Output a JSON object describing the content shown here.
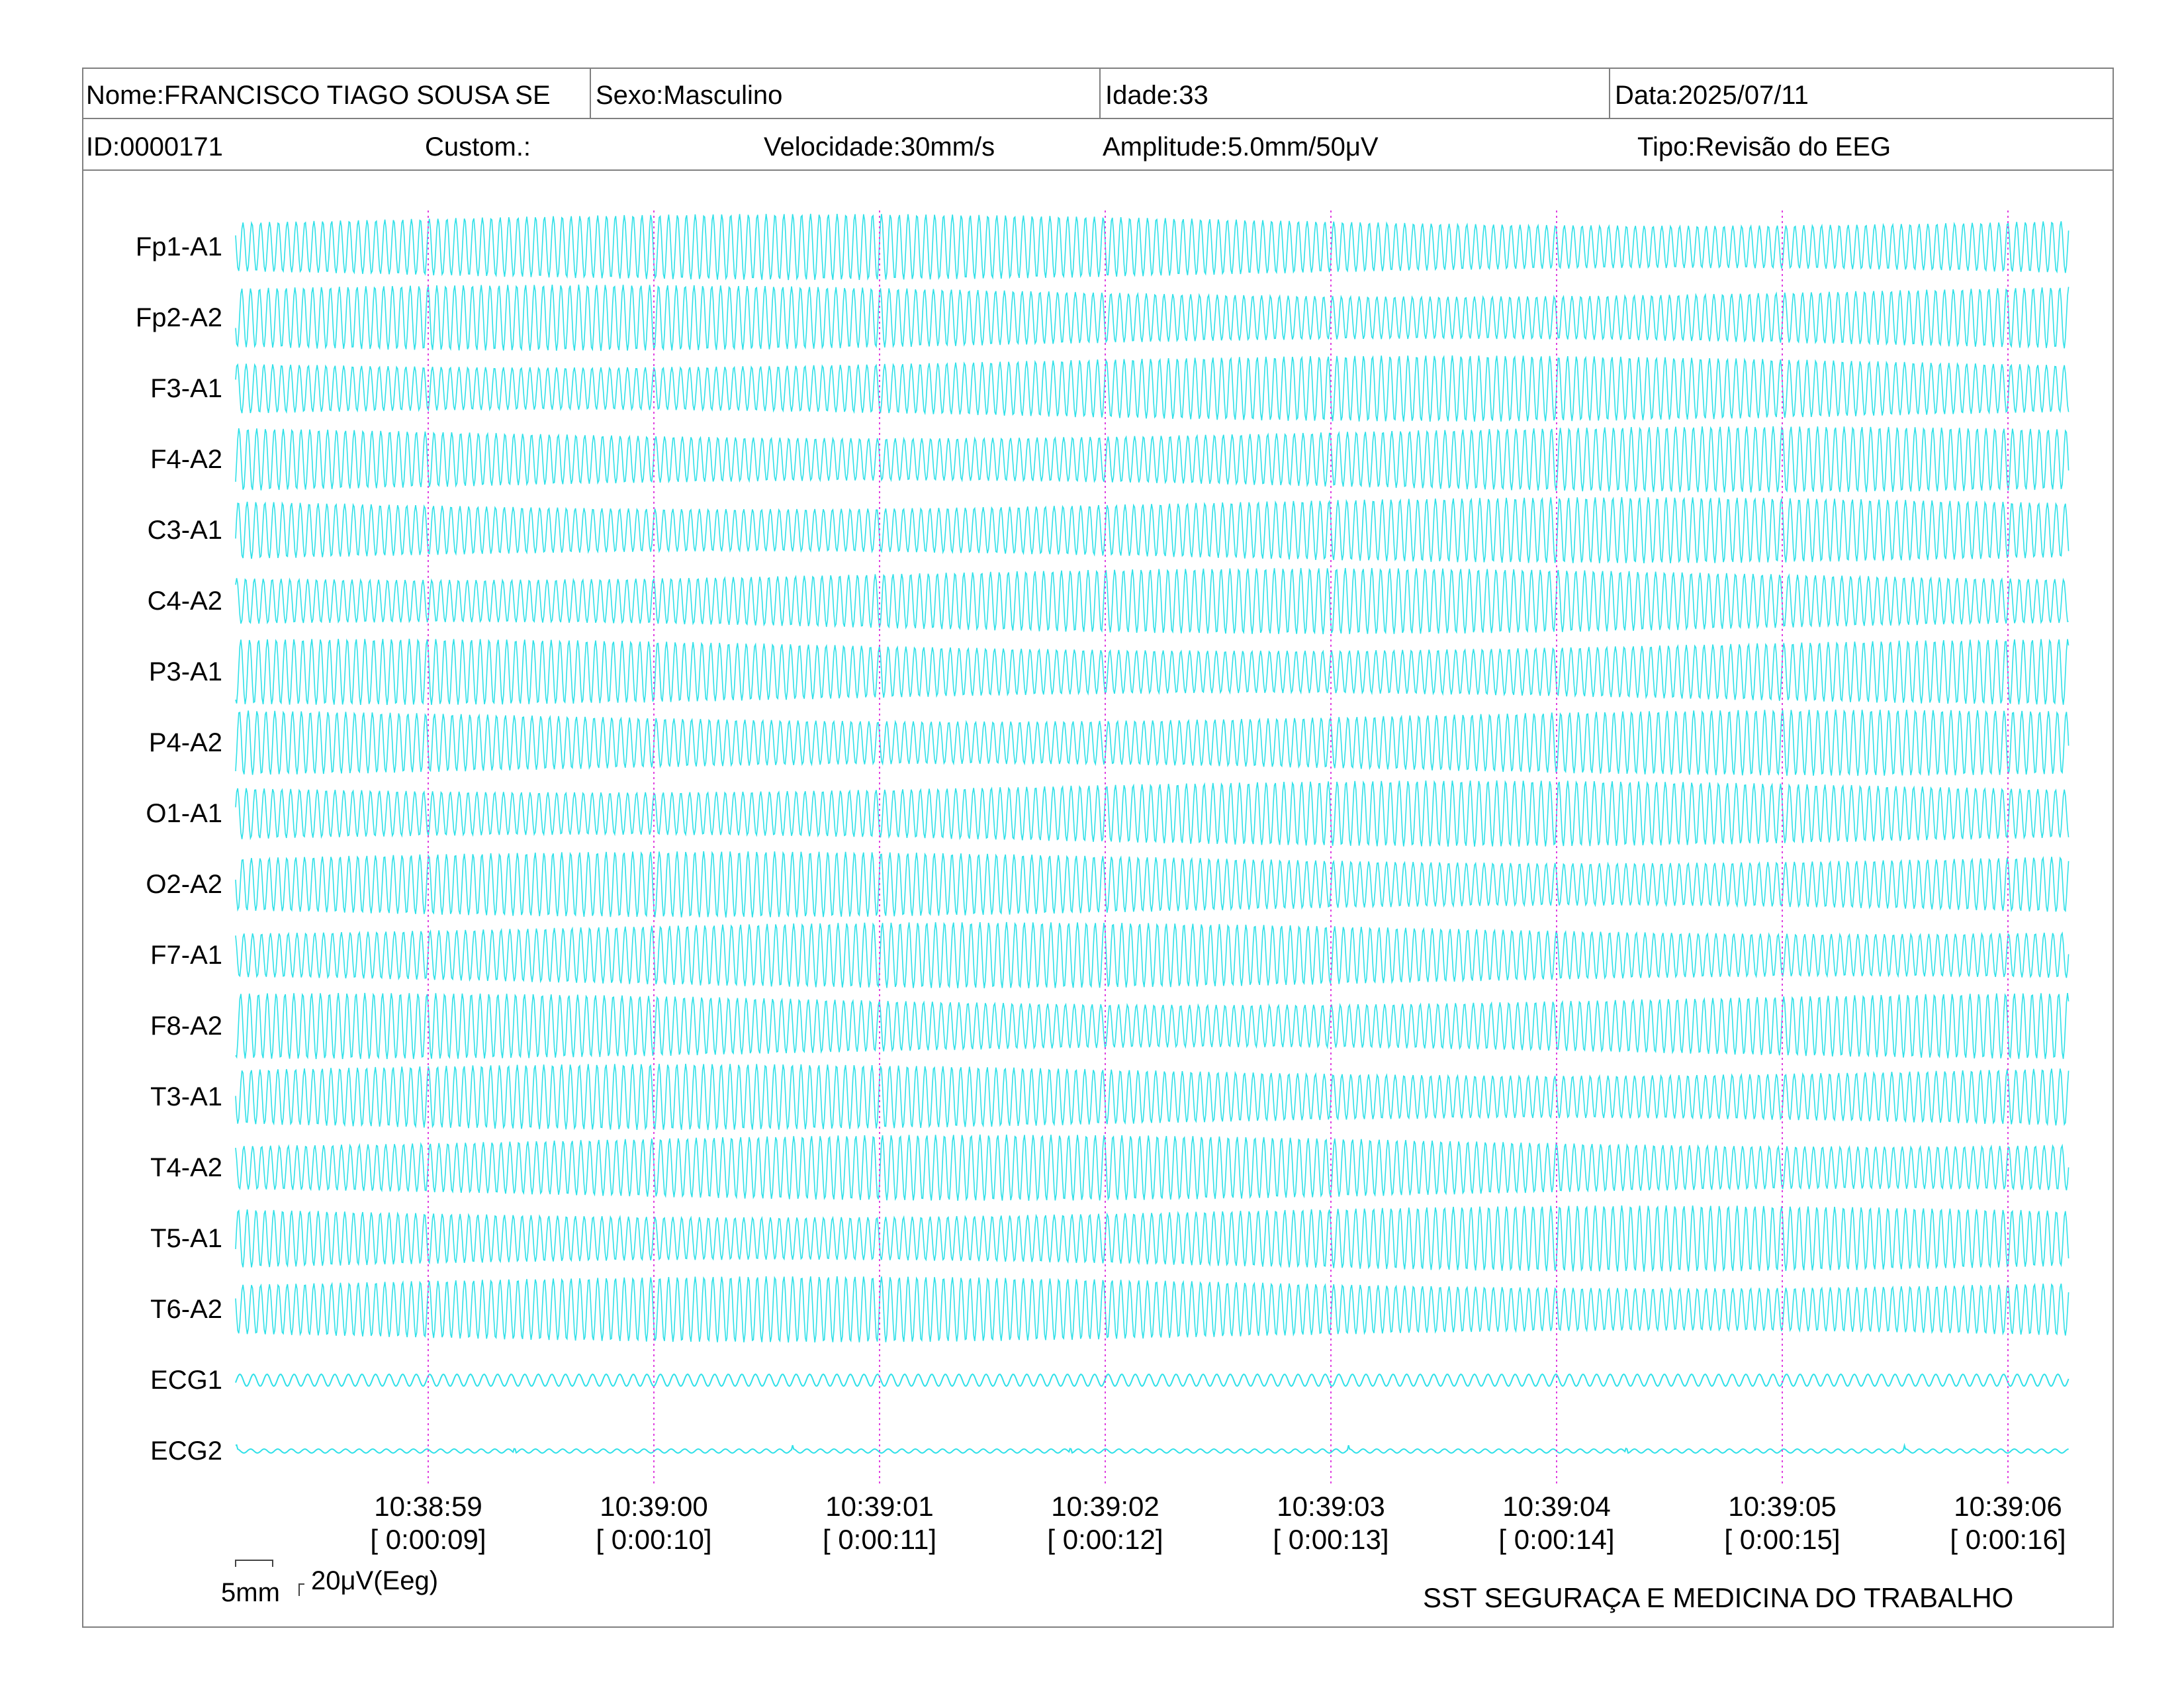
{
  "header": {
    "nome": "Nome:FRANCISCO TIAGO SOUSA SE",
    "sexo": "Sexo:Masculino",
    "idade": "Idade:33",
    "data": "Data:2025/07/11",
    "id": "ID:0000171",
    "custom": "Custom.:",
    "velocidade": "Velocidade:30mm/s",
    "amplitude": "Amplitude:5.0mm/50μV",
    "tipo": "Tipo:Revisão do EEG"
  },
  "channels": [
    "Fp1-A1",
    "Fp2-A2",
    "F3-A1",
    "F4-A2",
    "C3-A1",
    "C4-A2",
    "P3-A1",
    "P4-A2",
    "O1-A1",
    "O2-A2",
    "F7-A1",
    "F8-A2",
    "T3-A1",
    "T4-A2",
    "T5-A1",
    "T6-A2",
    "ECG1",
    "ECG2"
  ],
  "time_marks": [
    {
      "clock": "10:38:59",
      "elapsed": "[ 0:00:09]"
    },
    {
      "clock": "10:39:00",
      "elapsed": "[ 0:00:10]"
    },
    {
      "clock": "10:39:01",
      "elapsed": "[ 0:00:11]"
    },
    {
      "clock": "10:39:02",
      "elapsed": "[ 0:00:12]"
    },
    {
      "clock": "10:39:03",
      "elapsed": "[ 0:00:13]"
    },
    {
      "clock": "10:39:04",
      "elapsed": "[ 0:00:14]"
    },
    {
      "clock": "10:39:05",
      "elapsed": "[ 0:00:15]"
    },
    {
      "clock": "10:39:06",
      "elapsed": "[ 0:00:16]"
    }
  ],
  "scale": {
    "time_label": "5mm",
    "amp_label": "20μV(Eeg)"
  },
  "footer": {
    "organization": "SST SEGURAÇA E MEDICINA DO TRABALHO"
  },
  "colors": {
    "trace": "#2fe0e8",
    "marker": "#e040e0",
    "border": "#808080"
  }
}
